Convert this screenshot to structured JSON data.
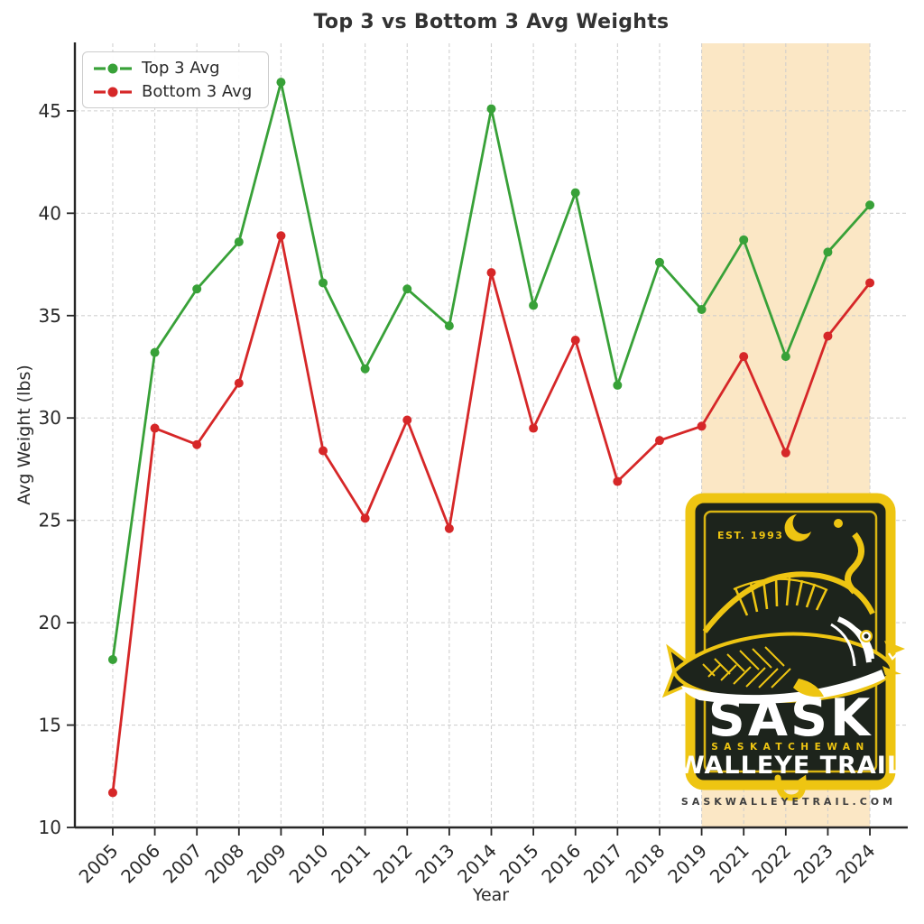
{
  "chart_data": {
    "type": "line",
    "title": "Top 3 vs Bottom 3 Avg Weights",
    "xlabel": "Year",
    "ylabel": "Avg Weight (lbs)",
    "categories": [
      "2005",
      "2006",
      "2007",
      "2008",
      "2009",
      "2010",
      "2011",
      "2012",
      "2013",
      "2014",
      "2015",
      "2016",
      "2017",
      "2018",
      "2019",
      "2021",
      "2022",
      "2023",
      "2024"
    ],
    "series": [
      {
        "name": "Top 3 Avg",
        "color": "#38a138",
        "values": [
          18.2,
          33.2,
          36.3,
          38.6,
          46.4,
          36.6,
          32.4,
          36.3,
          34.5,
          45.1,
          35.5,
          41.0,
          31.6,
          37.6,
          35.3,
          38.7,
          33.0,
          38.1,
          40.4
        ]
      },
      {
        "name": "Bottom 3 Avg",
        "color": "#d62728",
        "values": [
          11.7,
          29.5,
          28.7,
          31.7,
          38.9,
          28.4,
          25.1,
          29.9,
          24.6,
          37.1,
          29.5,
          33.8,
          26.9,
          28.9,
          29.6,
          33.0,
          28.3,
          34.0,
          36.6
        ]
      }
    ],
    "ylim": [
      10,
      48.3
    ],
    "yticks": [
      10,
      15,
      20,
      25,
      30,
      35,
      40,
      45
    ],
    "grid": true,
    "grid_style": "dashed",
    "legend_position": "upper-left",
    "highlight_band": {
      "from": "2019",
      "to": "2024",
      "color": "#fbe7c5"
    }
  },
  "legend": {
    "items": [
      {
        "label": "Top 3 Avg",
        "color": "#38a138"
      },
      {
        "label": "Bottom 3 Avg",
        "color": "#d62728"
      }
    ]
  },
  "logo": {
    "est": "EST. 1993",
    "title": "SASK",
    "subtitle": "SASKATCHEWAN",
    "title2": "WALLEYE TRAIL",
    "website": "SASKWALLEYETRAIL.COM",
    "colors": {
      "yellow": "#eec512",
      "dark": "#1d241c",
      "white": "#ffffff",
      "site_text": "#3f3f3f"
    }
  }
}
